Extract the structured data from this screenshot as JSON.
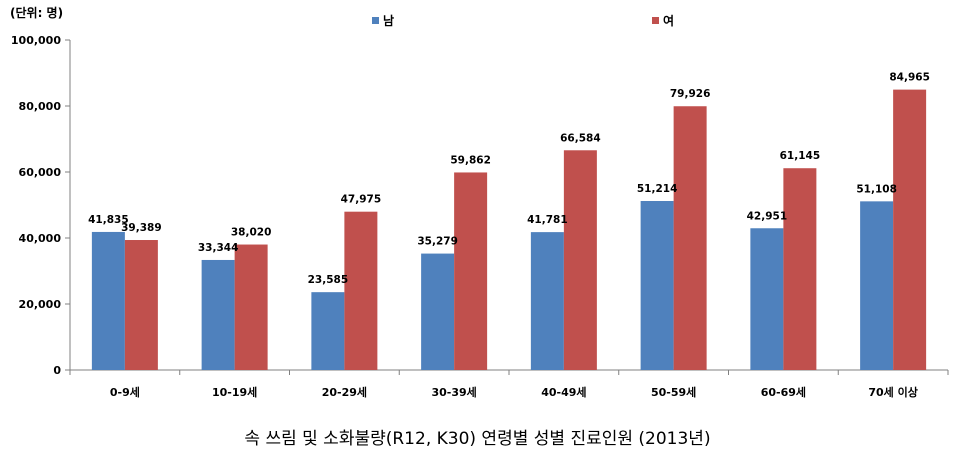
{
  "chart_data": {
    "type": "bar",
    "unit_label": "(단위: 명)",
    "caption": "속 쓰림 및 소화불량(R12, K30) 연령별 성별 진료인원 (2013년)",
    "categories": [
      "0-9세",
      "10-19세",
      "20-29세",
      "30-39세",
      "40-49세",
      "50-59세",
      "60-69세",
      "70세 이상"
    ],
    "series": [
      {
        "name": "남",
        "color": "#4F81BD",
        "values": [
          41835,
          33344,
          23585,
          35279,
          41781,
          51214,
          42951,
          51108
        ],
        "labels": [
          "41,835",
          "33,344",
          "23,585",
          "35,279",
          "41,781",
          "51,214",
          "42,951",
          "51,108"
        ]
      },
      {
        "name": "여",
        "color": "#C0504D",
        "values": [
          39389,
          38020,
          47975,
          59862,
          66584,
          79926,
          61145,
          84965
        ],
        "labels": [
          "39,389",
          "38,020",
          "47,975",
          "59,862",
          "66,584",
          "79,926",
          "61,145",
          "84,965"
        ]
      }
    ],
    "ylim": [
      0,
      100000
    ],
    "yticks": [
      "0",
      "20,000",
      "40,000",
      "60,000",
      "80,000",
      "100,000"
    ],
    "legend_position": "top",
    "grid": false
  }
}
